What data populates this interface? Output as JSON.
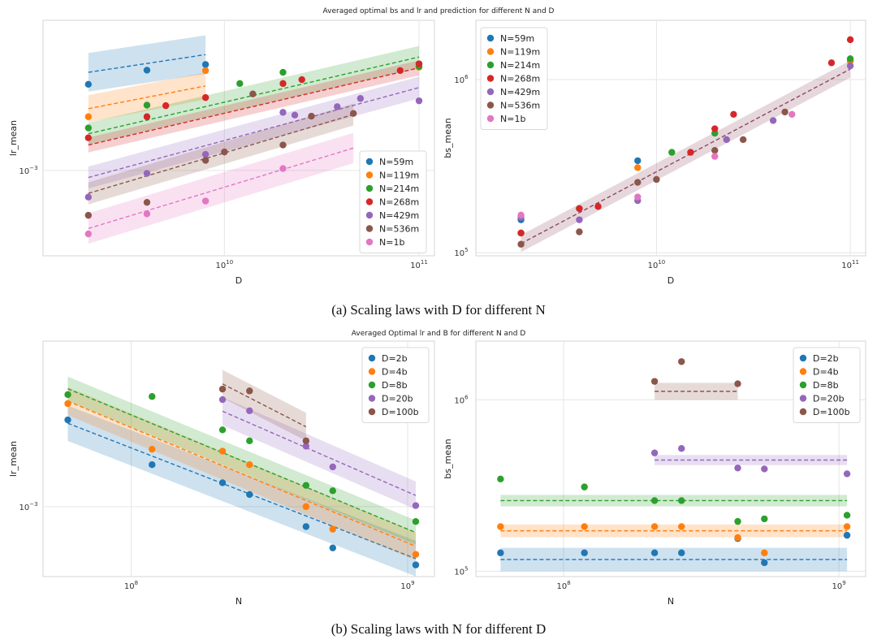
{
  "captions": {
    "a": "(a) Scaling laws with D for different N",
    "b": "(b) Scaling laws with N for different D"
  },
  "colors": {
    "blue": "#1f77b4",
    "orange": "#ff7f0e",
    "green": "#2ca02c",
    "red": "#d62728",
    "purple": "#9467bd",
    "brown": "#8c564b",
    "pink": "#e377c2"
  },
  "chart_data": [
    {
      "id": "p1",
      "type": "scatter",
      "suptitle": "Averaged optimal bs and lr and prediction for different N and D",
      "xlabel": "D",
      "ylabel": "lr_mean",
      "xscale": "log",
      "yscale": "log",
      "xlim": [
        1170000000.0,
        120000000000.0
      ],
      "ylim": [
        0.000415,
        0.0047
      ],
      "xticks": [
        {
          "v": 10000000000.0,
          "base": "10",
          "exp": "10"
        },
        {
          "v": 100000000000.0,
          "base": "10",
          "exp": "11"
        }
      ],
      "yticks": [
        {
          "v": 0.001,
          "base": "10",
          "exp": "−3"
        }
      ],
      "legend_position": "center-right",
      "series": [
        {
          "name": "N=59m",
          "color": "#1f77b4",
          "points": [
            [
              2000000000.0,
              0.00243
            ],
            [
              4000000000.0,
              0.00281
            ],
            [
              8000000000.0,
              0.00298
            ],
            [
              100000000000.0,
              0.003
            ]
          ],
          "fit": {
            "x0": 2000000000.0,
            "x1": 8000000000.0,
            "y0": 0.00275,
            "y1": 0.0033,
            "band": 1.22
          }
        },
        {
          "name": "N=119m",
          "color": "#ff7f0e",
          "points": [
            [
              2000000000.0,
              0.00174
            ],
            [
              8000000000.0,
              0.0028
            ],
            [
              100000000000.0,
              0.0029
            ]
          ],
          "fit": {
            "x0": 2000000000.0,
            "x1": 8000000000.0,
            "y0": 0.00189,
            "y1": 0.00239,
            "band": 1.15
          }
        },
        {
          "name": "N=214m",
          "color": "#2ca02c",
          "points": [
            [
              2000000000.0,
              0.00155
            ],
            [
              4000000000.0,
              0.00196
            ],
            [
              12000000000.0,
              0.00245
            ],
            [
              20000000000.0,
              0.00275
            ],
            [
              100000000000.0,
              0.00292
            ]
          ],
          "fit": {
            "x0": 2000000000.0,
            "x1": 100000000000.0,
            "y0": 0.00146,
            "y1": 0.00322,
            "band": 1.12
          }
        },
        {
          "name": "N=268m",
          "color": "#d62728",
          "points": [
            [
              2000000000.0,
              0.0014
            ],
            [
              4000000000.0,
              0.00174
            ],
            [
              5000000000.0,
              0.00195
            ],
            [
              8000000000.0,
              0.00212
            ],
            [
              20000000000.0,
              0.00245
            ],
            [
              25000000000.0,
              0.00255
            ],
            [
              80000000000.0,
              0.0028
            ],
            [
              100000000000.0,
              0.003
            ]
          ],
          "fit": {
            "x0": 2000000000.0,
            "x1": 100000000000.0,
            "y0": 0.0013,
            "y1": 0.00288,
            "band": 1.08
          }
        },
        {
          "name": "N=429m",
          "color": "#9467bd",
          "points": [
            [
              2000000000.0,
              0.00076
            ],
            [
              4000000000.0,
              0.00097
            ],
            [
              8000000000.0,
              0.00118
            ],
            [
              20000000000.0,
              0.00182
            ],
            [
              23000000000.0,
              0.00177
            ],
            [
              38000000000.0,
              0.00193
            ],
            [
              50000000000.0,
              0.0021
            ],
            [
              100000000000.0,
              0.00205
            ]
          ],
          "fit": {
            "x0": 2000000000.0,
            "x1": 100000000000.0,
            "y0": 0.00093,
            "y1": 0.00235,
            "band": 1.12
          }
        },
        {
          "name": "N=536m",
          "color": "#8c564b",
          "points": [
            [
              2000000000.0,
              0.00063
            ],
            [
              4000000000.0,
              0.00072
            ],
            [
              8000000000.0,
              0.00111
            ],
            [
              10000000000.0,
              0.00121
            ],
            [
              14000000000.0,
              0.0022
            ],
            [
              20000000000.0,
              0.0013
            ],
            [
              28000000000.0,
              0.00175
            ],
            [
              46000000000.0,
              0.0018
            ]
          ],
          "fit": {
            "x0": 2000000000.0,
            "x1": 46000000000.0,
            "y0": 0.00079,
            "y1": 0.00178,
            "band": 1.12
          }
        },
        {
          "name": "N=1b",
          "color": "#e377c2",
          "points": [
            [
              2000000000.0,
              0.00052
            ],
            [
              4000000000.0,
              0.00064
            ],
            [
              8000000000.0,
              0.00073
            ],
            [
              20000000000.0,
              0.00102
            ]
          ],
          "fit": {
            "x0": 2000000000.0,
            "x1": 46000000000.0,
            "y0": 0.00055,
            "y1": 0.00126,
            "band": 1.17
          }
        }
      ]
    },
    {
      "id": "p2",
      "type": "scatter",
      "xlabel": "D",
      "ylabel": "bs_mean",
      "xscale": "log",
      "yscale": "log",
      "xlim": [
        1170000000.0,
        120000000000.0
      ],
      "ylim": [
        96000,
        2200000
      ],
      "xticks": [
        {
          "v": 10000000000.0,
          "base": "10",
          "exp": "10"
        },
        {
          "v": 100000000000.0,
          "base": "10",
          "exp": "11"
        }
      ],
      "yticks": [
        {
          "v": 100000.0,
          "base": "10",
          "exp": "5"
        },
        {
          "v": 1000000.0,
          "base": "10",
          "exp": "6"
        }
      ],
      "legend_position": "top-left",
      "series": [
        {
          "name": "N=59m",
          "color": "#1f77b4",
          "points": [
            [
              2000000000.0,
              155000
            ],
            [
              8000000000.0,
              340000
            ],
            [
              100000000000.0,
              1280000
            ]
          ]
        },
        {
          "name": "N=119m",
          "color": "#ff7f0e",
          "points": [
            [
              2000000000.0,
              130000
            ],
            [
              8000000000.0,
              310000
            ],
            [
              100000000000.0,
              1280000
            ]
          ]
        },
        {
          "name": "N=214m",
          "color": "#2ca02c",
          "points": [
            [
              2000000000.0,
              130000
            ],
            [
              4000000000.0,
              180000
            ],
            [
              12000000000.0,
              380000
            ],
            [
              20000000000.0,
              490000
            ],
            [
              100000000000.0,
              1320000
            ]
          ]
        },
        {
          "name": "N=268m",
          "color": "#d62728",
          "points": [
            [
              2000000000.0,
              130000
            ],
            [
              4000000000.0,
              180000
            ],
            [
              5000000000.0,
              185000
            ],
            [
              15000000000.0,
              380000
            ],
            [
              20000000000.0,
              520000
            ],
            [
              25000000000.0,
              630000
            ],
            [
              80000000000.0,
              1250000
            ],
            [
              100000000000.0,
              1700000
            ]
          ]
        },
        {
          "name": "N=429m",
          "color": "#9467bd",
          "points": [
            [
              2000000000.0,
              160000
            ],
            [
              4000000000.0,
              155000
            ],
            [
              8000000000.0,
              200000
            ],
            [
              23000000000.0,
              450000
            ],
            [
              40000000000.0,
              580000
            ],
            [
              100000000000.0,
              1200000
            ]
          ]
        },
        {
          "name": "N=536m",
          "color": "#8c564b",
          "points": [
            [
              2000000000.0,
              112000
            ],
            [
              4000000000.0,
              132000
            ],
            [
              8000000000.0,
              255000
            ],
            [
              10000000000.0,
              265000
            ],
            [
              20000000000.0,
              390000
            ],
            [
              28000000000.0,
              450000
            ],
            [
              46000000000.0,
              650000
            ]
          ]
        },
        {
          "name": "N=1b",
          "color": "#e377c2",
          "points": [
            [
              2000000000.0,
              165000
            ],
            [
              8000000000.0,
              210000
            ],
            [
              20000000000.0,
              360000
            ],
            [
              50000000000.0,
              630000
            ]
          ]
        }
      ],
      "fit": {
        "color": "#8c4a5e",
        "x0": 2000000000.0,
        "x1": 100000000000.0,
        "y0": 113000,
        "y1": 1150000,
        "band": 1.12
      }
    },
    {
      "id": "p3",
      "type": "scatter",
      "suptitle": "Averaged Optimal lr and B for different N and D",
      "xlabel": "N",
      "ylabel": "lr_mean",
      "xscale": "log",
      "yscale": "log",
      "xlim": [
        48000000.0,
        1250000000.0
      ],
      "ylim": [
        0.00052,
        0.0047
      ],
      "xticks": [
        {
          "v": 100000000.0,
          "base": "10",
          "exp": "8"
        },
        {
          "v": 1000000000.0,
          "base": "10",
          "exp": "9"
        }
      ],
      "yticks": [
        {
          "v": 0.001,
          "base": "10",
          "exp": "−3"
        }
      ],
      "legend_position": "top-right",
      "series": [
        {
          "name": "D=2b",
          "color": "#1f77b4",
          "points": [
            [
              59000000.0,
              0.00225
            ],
            [
              119000000.0,
              0.00148
            ],
            [
              214000000.0,
              0.00125
            ],
            [
              268000000.0,
              0.00112
            ],
            [
              429000000.0,
              0.00083
            ],
            [
              536000000.0,
              0.00068
            ],
            [
              1070000000.0,
              0.00058
            ]
          ],
          "fit": {
            "x0": 59000000.0,
            "x1": 1070000000.0,
            "y0": 0.00218,
            "y1": 0.000615,
            "band": 1.18
          }
        },
        {
          "name": "D=4b",
          "color": "#ff7f0e",
          "points": [
            [
              59000000.0,
              0.00262
            ],
            [
              119000000.0,
              0.00171
            ],
            [
              214000000.0,
              0.00168
            ],
            [
              268000000.0,
              0.00148
            ],
            [
              429000000.0,
              0.001
            ],
            [
              536000000.0,
              0.00081
            ],
            [
              1070000000.0,
              0.00064
            ]
          ],
          "fit": {
            "x0": 59000000.0,
            "x1": 1070000000.0,
            "y0": 0.00268,
            "y1": 0.00069,
            "band": 1.14
          }
        },
        {
          "name": "D=8b",
          "color": "#2ca02c",
          "points": [
            [
              59000000.0,
              0.00285
            ],
            [
              119000000.0,
              0.0028
            ],
            [
              214000000.0,
              0.00205
            ],
            [
              268000000.0,
              0.00185
            ],
            [
              429000000.0,
              0.00122
            ],
            [
              536000000.0,
              0.00116
            ],
            [
              1070000000.0,
              0.00087
            ]
          ],
          "fit": {
            "x0": 59000000.0,
            "x1": 1070000000.0,
            "y0": 0.00301,
            "y1": 0.000785,
            "band": 1.12
          }
        },
        {
          "name": "D=20b",
          "color": "#9467bd",
          "points": [
            [
              214000000.0,
              0.00272
            ],
            [
              268000000.0,
              0.00245
            ],
            [
              429000000.0,
              0.00176
            ],
            [
              536000000.0,
              0.00145
            ],
            [
              1070000000.0,
              0.00101
            ]
          ],
          "fit": {
            "x0": 214000000.0,
            "x1": 1070000000.0,
            "y0": 0.00244,
            "y1": 0.00111,
            "band": 1.14
          }
        },
        {
          "name": "D=100b",
          "color": "#8c564b",
          "points": [
            [
              214000000.0,
              0.003
            ],
            [
              268000000.0,
              0.00295
            ],
            [
              429000000.0,
              0.00185
            ]
          ],
          "fit": {
            "x0": 214000000.0,
            "x1": 429000000.0,
            "y0": 0.00315,
            "y1": 0.00211,
            "band": 1.14
          }
        }
      ]
    },
    {
      "id": "p4",
      "type": "scatter",
      "xlabel": "N",
      "ylabel": "bs_mean",
      "xscale": "log",
      "yscale": "log",
      "xlim": [
        48000000.0,
        1250000000.0
      ],
      "ylim": [
        93000,
        2200000
      ],
      "xticks": [
        {
          "v": 100000000.0,
          "base": "10",
          "exp": "8"
        },
        {
          "v": 1000000000.0,
          "base": "10",
          "exp": "9"
        }
      ],
      "yticks": [
        {
          "v": 100000.0,
          "base": "10",
          "exp": "5"
        },
        {
          "v": 1000000.0,
          "base": "10",
          "exp": "6"
        }
      ],
      "legend_position": "top-right",
      "series": [
        {
          "name": "D=2b",
          "color": "#1f77b4",
          "points": [
            [
              59000000.0,
              128000
            ],
            [
              119000000.0,
              128000
            ],
            [
              214000000.0,
              128000
            ],
            [
              268000000.0,
              128000
            ],
            [
              429000000.0,
              155000
            ],
            [
              536000000.0,
              112000
            ],
            [
              1070000000.0,
              162000
            ]
          ],
          "fit": {
            "x0": 59000000.0,
            "x1": 1070000000.0,
            "y": 117000,
            "band": 1.17
          }
        },
        {
          "name": "D=4b",
          "color": "#ff7f0e",
          "points": [
            [
              59000000.0,
              182000
            ],
            [
              119000000.0,
              182000
            ],
            [
              214000000.0,
              182000
            ],
            [
              268000000.0,
              182000
            ],
            [
              429000000.0,
              157000
            ],
            [
              536000000.0,
              128000
            ],
            [
              1070000000.0,
              182000
            ]
          ],
          "fit": {
            "x0": 59000000.0,
            "x1": 1070000000.0,
            "y": 172000,
            "band": 1.09
          }
        },
        {
          "name": "D=8b",
          "color": "#2ca02c",
          "points": [
            [
              59000000.0,
              345000
            ],
            [
              119000000.0,
              310000
            ],
            [
              214000000.0,
              258000
            ],
            [
              268000000.0,
              258000
            ],
            [
              429000000.0,
              195000
            ],
            [
              536000000.0,
              202000
            ],
            [
              1070000000.0,
              212000
            ]
          ],
          "fit": {
            "x0": 59000000.0,
            "x1": 1070000000.0,
            "y": 258000,
            "band": 1.08
          }
        },
        {
          "name": "D=20b",
          "color": "#9467bd",
          "points": [
            [
              214000000.0,
              490000
            ],
            [
              268000000.0,
              520000
            ],
            [
              429000000.0,
              400000
            ],
            [
              536000000.0,
              395000
            ],
            [
              1070000000.0,
              370000
            ]
          ],
          "fit": {
            "x0": 214000000.0,
            "x1": 1070000000.0,
            "y": 445000,
            "band": 1.07
          }
        },
        {
          "name": "D=100b",
          "color": "#8c564b",
          "points": [
            [
              214000000.0,
              1280000
            ],
            [
              268000000.0,
              1670000
            ],
            [
              429000000.0,
              1240000
            ]
          ],
          "fit": {
            "x0": 214000000.0,
            "x1": 429000000.0,
            "y": 1120000,
            "band": 1.12
          }
        }
      ]
    }
  ]
}
